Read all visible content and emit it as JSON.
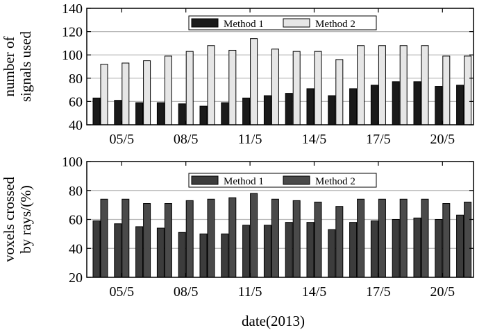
{
  "chart_data": [
    {
      "type": "bar",
      "title": "",
      "xlabel": "",
      "ylabel_lines": [
        "number of",
        "signals used"
      ],
      "ylim": [
        40,
        140
      ],
      "yticks": [
        40,
        60,
        80,
        100,
        120,
        140
      ],
      "xtick_labels": [
        "05/5",
        "08/5",
        "11/5",
        "14/5",
        "17/5",
        "20/5"
      ],
      "grid": true,
      "legend": "top-right",
      "series": [
        {
          "name": "Method 1",
          "color": "#1a1a1a",
          "values": [
            63,
            61,
            59,
            59,
            58,
            56,
            59,
            63,
            65,
            67,
            71,
            65,
            71,
            74,
            77,
            77,
            73,
            74
          ]
        },
        {
          "name": "Method 2",
          "color": "#e6e6e6",
          "values": [
            92,
            93,
            95,
            99,
            103,
            108,
            104,
            114,
            105,
            103,
            103,
            96,
            108,
            108,
            108,
            108,
            99,
            99
          ]
        }
      ]
    },
    {
      "type": "bar",
      "title": "",
      "xlabel": "date(2013)",
      "ylabel_lines": [
        "voxels crossed",
        "by rays/(%)"
      ],
      "ylim": [
        20,
        100
      ],
      "yticks": [
        20,
        40,
        60,
        80,
        100
      ],
      "xtick_labels": [
        "05/5",
        "08/5",
        "11/5",
        "14/5",
        "17/5",
        "20/5"
      ],
      "grid": true,
      "legend": "top-right",
      "series": [
        {
          "name": "Method 1",
          "color": "#3c3c3c",
          "values": [
            59,
            57,
            55,
            54,
            51,
            50,
            50,
            56,
            56,
            58,
            58,
            53,
            58,
            59,
            60,
            61,
            60,
            63
          ]
        },
        {
          "name": "Method 2",
          "color": "#4a4a4a",
          "values": [
            74,
            74,
            71,
            71,
            73,
            74,
            75,
            78,
            74,
            73,
            72,
            69,
            74,
            74,
            74,
            74,
            71,
            72
          ]
        }
      ]
    }
  ]
}
